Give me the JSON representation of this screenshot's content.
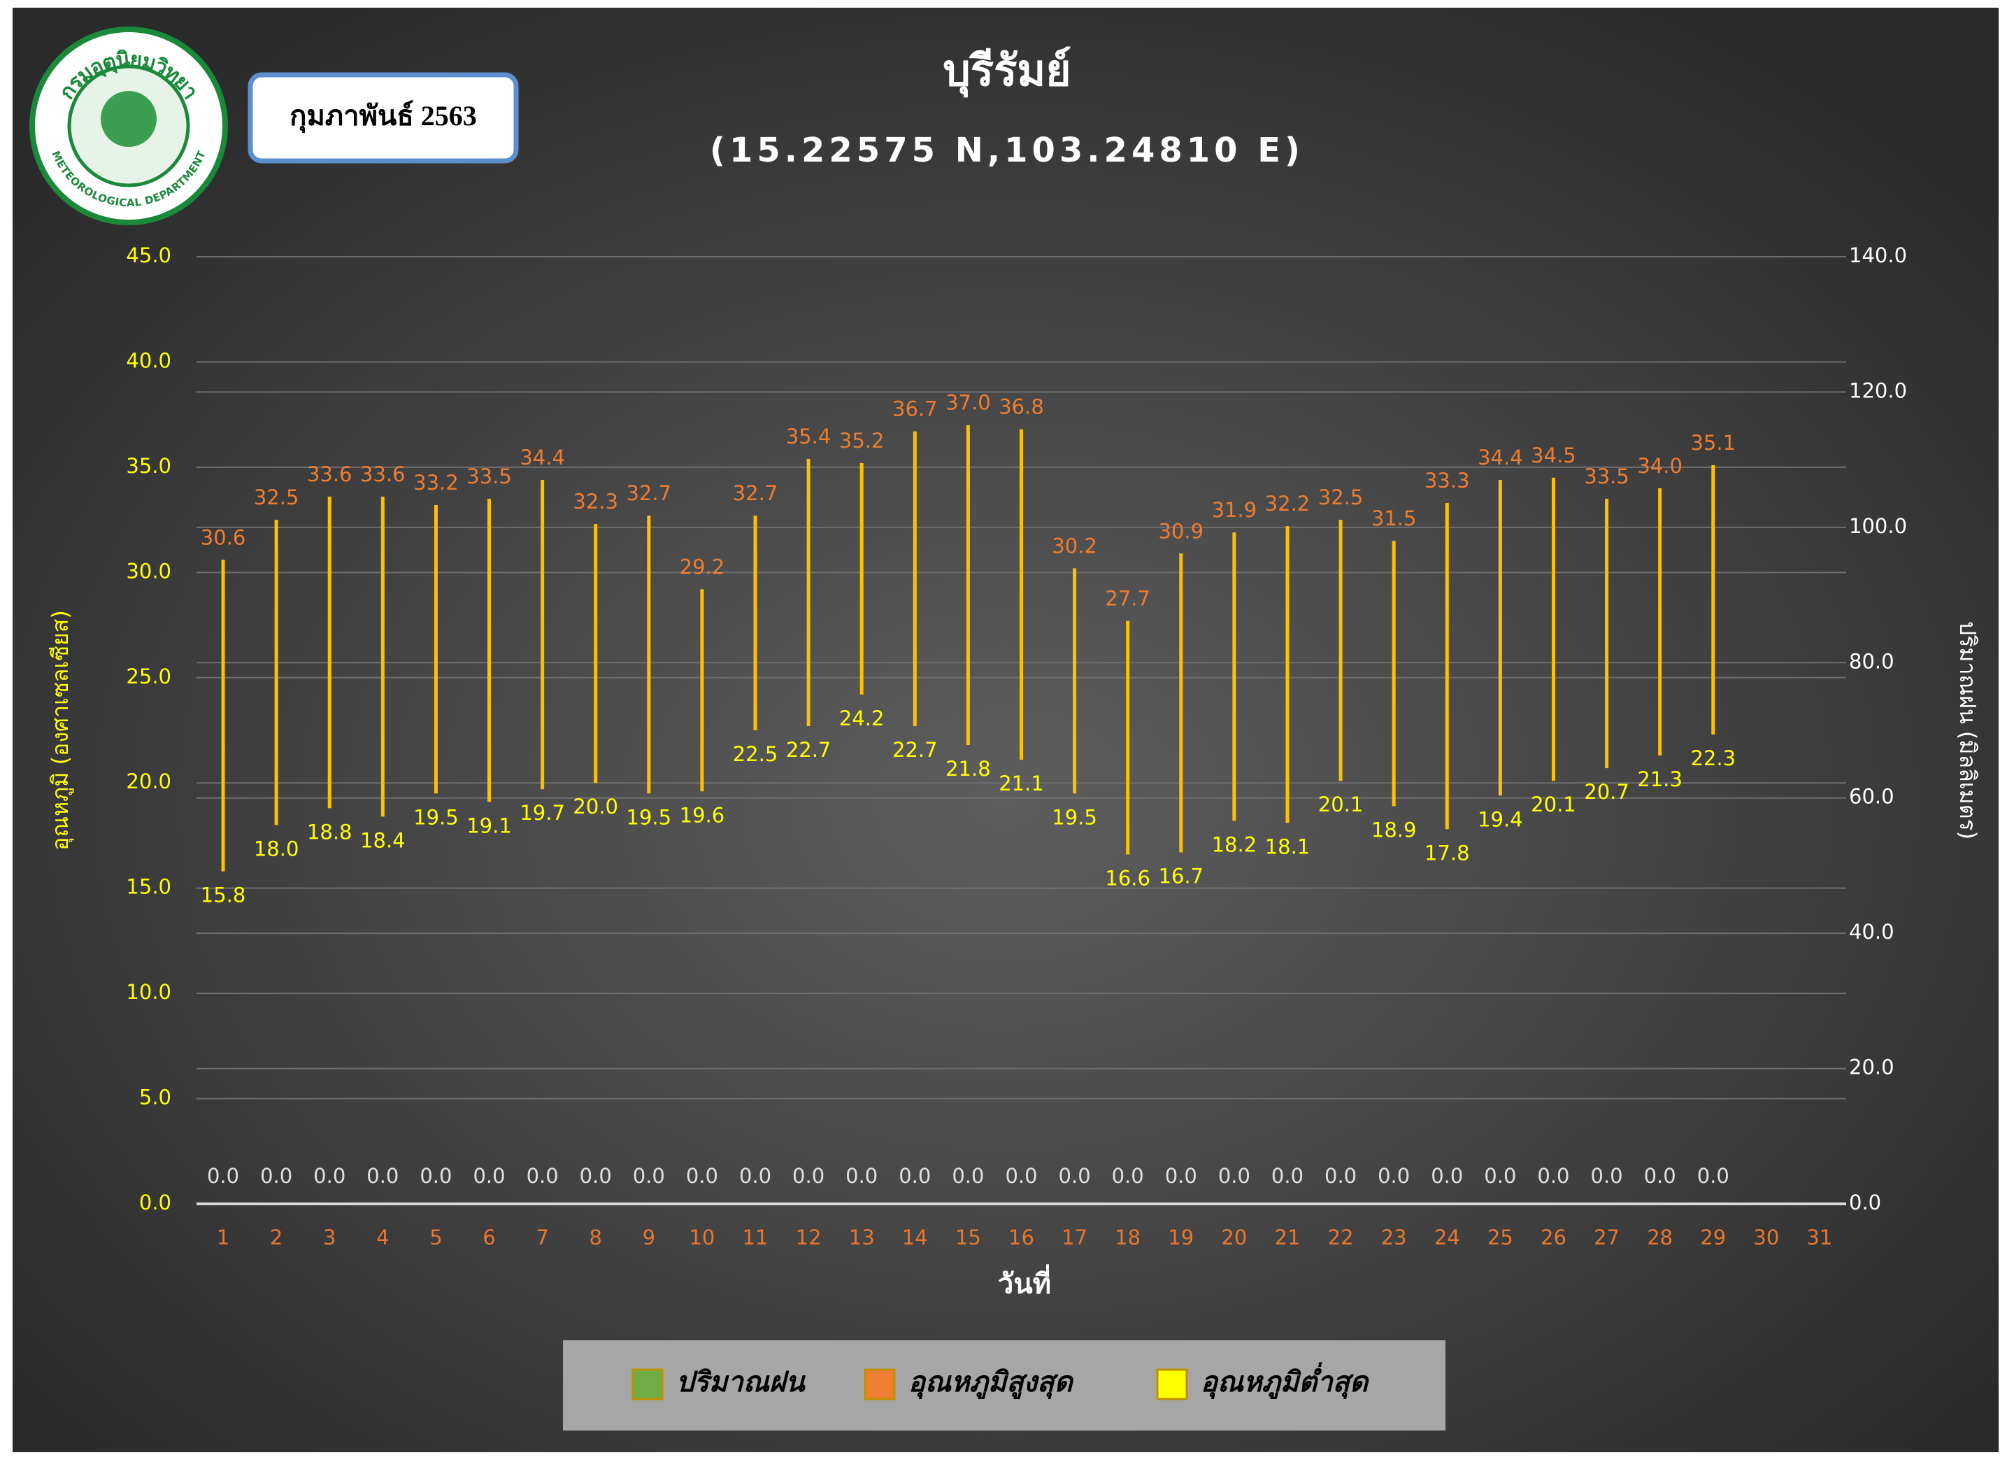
{
  "chart_data": {
    "type": "hilo",
    "title": "บุรีรัมย์",
    "subtitle": "(15.22575 N,103.24810 E)",
    "period": "กุมภาพันธ์ 2563",
    "logo_text": "กรมอุตุนิยมวิทยา",
    "logo_subtext": "METEOROLOGICAL DEPARTMENT",
    "x_label": "วันที่",
    "y_label": "อุณหภูมิ (องศาเซลเซียส)",
    "y2_label": "ปริมาณฝน (มิลลิเมตร)",
    "categories": [
      "1",
      "2",
      "3",
      "4",
      "5",
      "6",
      "7",
      "8",
      "9",
      "10",
      "11",
      "12",
      "13",
      "14",
      "15",
      "16",
      "17",
      "18",
      "19",
      "20",
      "21",
      "22",
      "23",
      "24",
      "25",
      "26",
      "27",
      "28",
      "29",
      "30",
      "31"
    ],
    "ylim": [
      0,
      45
    ],
    "yticks": [
      {
        "value": 0,
        "label": "0.0"
      },
      {
        "value": 5,
        "label": "5.0"
      },
      {
        "value": 10,
        "label": "10.0"
      },
      {
        "value": 15,
        "label": "15.0"
      },
      {
        "value": 20,
        "label": "20.0"
      },
      {
        "value": 25,
        "label": "25.0"
      },
      {
        "value": 30,
        "label": "30.0"
      },
      {
        "value": 35,
        "label": "35.0"
      },
      {
        "value": 40,
        "label": "40.0"
      },
      {
        "value": 45,
        "label": "45.0"
      }
    ],
    "y2lim": [
      0,
      140
    ],
    "y2ticks": [
      {
        "value": 0,
        "label": "0.0"
      },
      {
        "value": 20,
        "label": "20.0"
      },
      {
        "value": 40,
        "label": "40.0"
      },
      {
        "value": 60,
        "label": "60.0"
      },
      {
        "value": 80,
        "label": "80.0"
      },
      {
        "value": 100,
        "label": "100.0"
      },
      {
        "value": 120,
        "label": "120.0"
      },
      {
        "value": 140,
        "label": "140.0"
      }
    ],
    "grid": true,
    "hilo_color": "#ffc000",
    "series": [
      {
        "name": "ปริมาณฝน",
        "color": "#70ad47",
        "axis": "y2",
        "values": [
          0,
          0,
          0,
          0,
          0,
          0,
          0,
          0,
          0,
          0,
          0,
          0,
          0,
          0,
          0,
          0,
          0,
          0,
          0,
          0,
          0,
          0,
          0,
          0,
          0,
          0,
          0,
          0,
          0,
          null,
          null
        ],
        "value_labels": [
          "0.0",
          "0.0",
          "0.0",
          "0.0",
          "0.0",
          "0.0",
          "0.0",
          "0.0",
          "0.0",
          "0.0",
          "0.0",
          "0.0",
          "0.0",
          "0.0",
          "0.0",
          "0.0",
          "0.0",
          "0.0",
          "0.0",
          "0.0",
          "0.0",
          "0.0",
          "0.0",
          "0.0",
          "0.0",
          "0.0",
          "0.0",
          "0.0",
          "0.0",
          null,
          null
        ]
      },
      {
        "name": "อุณหภูมิสูงสุด",
        "color": "#ed7d31",
        "values": [
          30.6,
          32.5,
          33.6,
          33.6,
          33.2,
          33.5,
          34.4,
          32.3,
          32.7,
          29.2,
          32.7,
          35.4,
          35.2,
          36.7,
          37,
          36.8,
          30.2,
          27.7,
          30.9,
          31.9,
          32.2,
          32.5,
          31.5,
          33.3,
          34.4,
          34.5,
          33.5,
          34,
          35.1,
          null,
          null
        ],
        "value_labels": [
          "30.6",
          "32.5",
          "33.6",
          "33.6",
          "33.2",
          "33.5",
          "34.4",
          "32.3",
          "32.7",
          "29.2",
          "32.7",
          "35.4",
          "35.2",
          "36.7",
          "37.0",
          "36.8",
          "30.2",
          "27.7",
          "30.9",
          "31.9",
          "32.2",
          "32.5",
          "31.5",
          "33.3",
          "34.4",
          "34.5",
          "33.5",
          "34.0",
          "35.1",
          null,
          null
        ]
      },
      {
        "name": "อุณหภูมิต่ำสุด",
        "color": "#ffff00",
        "values": [
          15.8,
          18,
          18.8,
          18.4,
          19.5,
          19.1,
          19.7,
          20,
          19.5,
          19.6,
          22.5,
          22.7,
          24.2,
          22.7,
          21.8,
          21.1,
          19.5,
          16.6,
          16.7,
          18.2,
          18.1,
          20.1,
          18.9,
          17.8,
          19.4,
          20.1,
          20.7,
          21.3,
          22.3,
          null,
          null
        ],
        "value_labels": [
          "15.8",
          "18.0",
          "18.8",
          "18.4",
          "19.5",
          "19.1",
          "19.7",
          "20.0",
          "19.5",
          "19.6",
          "22.5",
          "22.7",
          "24.2",
          "22.7",
          "21.8",
          "21.1",
          "19.5",
          "16.6",
          "16.7",
          "18.2",
          "18.1",
          "20.1",
          "18.9",
          "17.8",
          "19.4",
          "20.1",
          "20.7",
          "21.3",
          "22.3",
          null,
          null
        ]
      }
    ]
  }
}
